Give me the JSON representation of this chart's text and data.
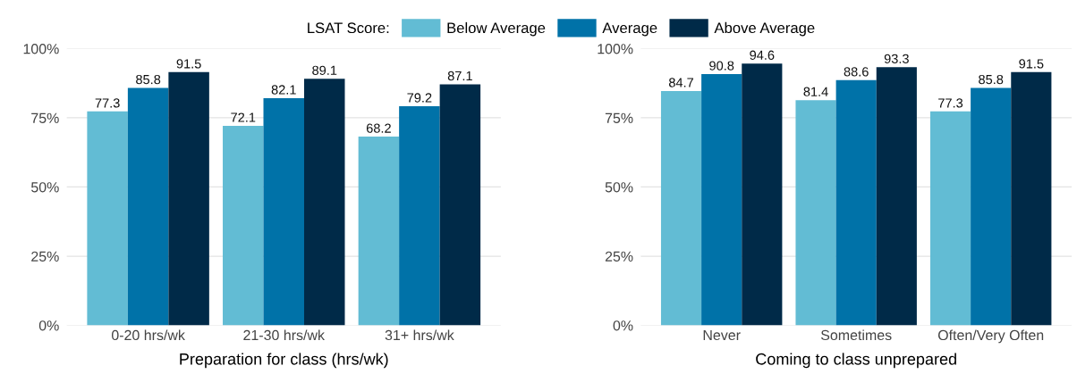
{
  "chart_data": [
    {
      "type": "bar",
      "xlabel": "Preparation for class (hrs/wk)",
      "categories": [
        "0-20 hrs/wk",
        "21-30 hrs/wk",
        "31+ hrs/wk"
      ],
      "series": [
        {
          "name": "Below Average",
          "color": "#62bcd4",
          "values": [
            77.3,
            72.1,
            68.2
          ]
        },
        {
          "name": "Average",
          "color": "#0072a8",
          "values": [
            85.8,
            82.1,
            79.2
          ]
        },
        {
          "name": "Above Average",
          "color": "#002a48",
          "values": [
            91.5,
            89.1,
            87.1
          ]
        }
      ],
      "ylim": [
        0,
        100
      ],
      "yticks": [
        {
          "value": 0,
          "label": "0%"
        },
        {
          "value": 25,
          "label": "25%"
        },
        {
          "value": 50,
          "label": "50%"
        },
        {
          "value": 75,
          "label": "75%"
        },
        {
          "value": 100,
          "label": "100%"
        }
      ],
      "grid": "y",
      "data_labels": true,
      "legend": "top",
      "legend_title": "LSAT Score:"
    },
    {
      "type": "bar",
      "xlabel": "Coming to class unprepared",
      "categories": [
        "Never",
        "Sometimes",
        "Often/Very Often"
      ],
      "series": [
        {
          "name": "Below Average",
          "color": "#62bcd4",
          "values": [
            84.7,
            81.4,
            77.3
          ]
        },
        {
          "name": "Average",
          "color": "#0072a8",
          "values": [
            90.8,
            88.6,
            85.8
          ]
        },
        {
          "name": "Above Average",
          "color": "#002a48",
          "values": [
            94.6,
            93.3,
            91.5
          ]
        }
      ],
      "ylim": [
        0,
        100
      ],
      "yticks": [
        {
          "value": 0,
          "label": "0%"
        },
        {
          "value": 25,
          "label": "25%"
        },
        {
          "value": 50,
          "label": "50%"
        },
        {
          "value": 75,
          "label": "75%"
        },
        {
          "value": 100,
          "label": "100%"
        }
      ],
      "grid": "y",
      "data_labels": true
    }
  ]
}
